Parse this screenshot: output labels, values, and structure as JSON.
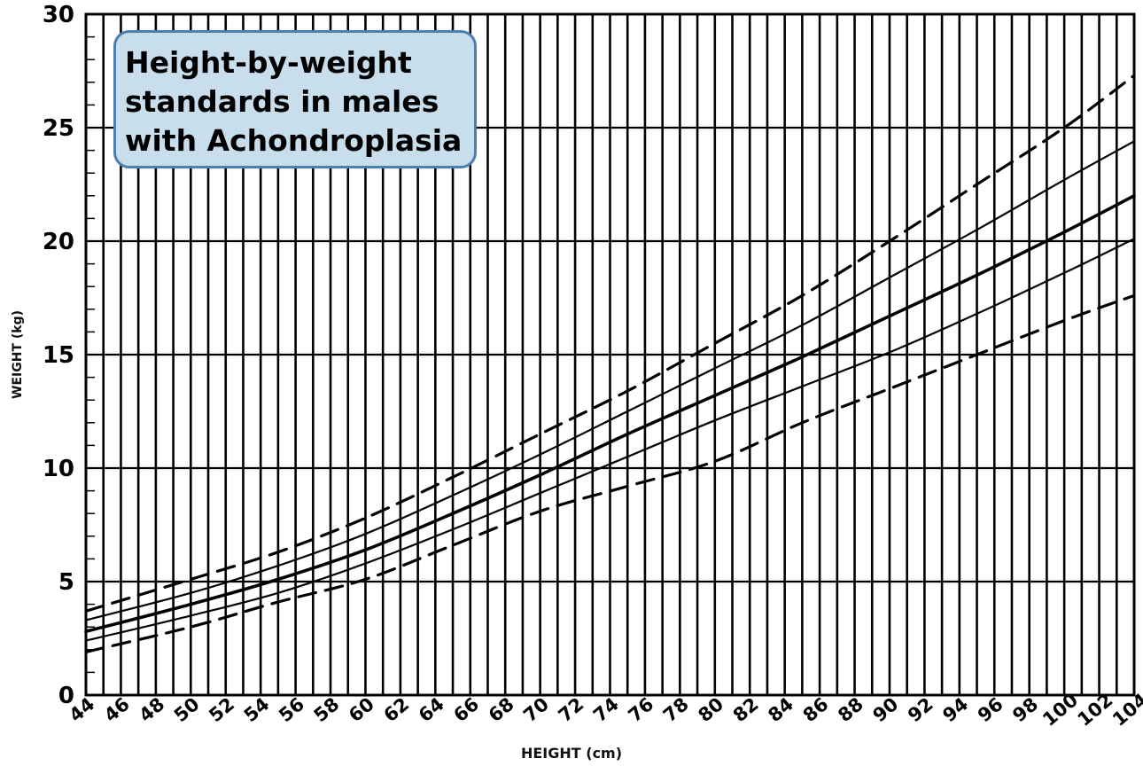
{
  "chart_data": {
    "type": "line",
    "title": "Height-by-weight standards in males with Achondroplasia",
    "xlabel": "HEIGHT (cm)",
    "ylabel": "WEIGHT (kg)",
    "xlim": [
      44,
      104
    ],
    "ylim": [
      0,
      30
    ],
    "x_ticks": [
      44,
      46,
      48,
      50,
      52,
      54,
      56,
      58,
      60,
      62,
      64,
      66,
      68,
      70,
      72,
      74,
      76,
      78,
      80,
      82,
      84,
      86,
      88,
      90,
      92,
      94,
      96,
      98,
      100,
      102,
      104
    ],
    "y_ticks": [
      0,
      5,
      10,
      15,
      20,
      25,
      30
    ],
    "grid": true,
    "legend": "none",
    "series": [
      {
        "style": "dashed",
        "x": [
          44,
          50,
          55,
          60,
          65,
          70,
          75,
          80,
          85,
          90,
          95,
          100,
          104
        ],
        "y": [
          3.7,
          5.1,
          6.3,
          7.8,
          9.6,
          11.5,
          13.4,
          15.5,
          17.6,
          20.0,
          22.5,
          25.0,
          27.3
        ]
      },
      {
        "style": "solid",
        "x": [
          44,
          50,
          55,
          60,
          65,
          70,
          75,
          80,
          85,
          90,
          95,
          100,
          104
        ],
        "y": [
          3.3,
          4.5,
          5.7,
          7.1,
          8.8,
          10.6,
          12.5,
          14.4,
          16.3,
          18.4,
          20.5,
          22.7,
          24.4
        ]
      },
      {
        "style": "solid-bold",
        "x": [
          44,
          50,
          55,
          60,
          65,
          70,
          75,
          80,
          85,
          90,
          95,
          100,
          104
        ],
        "y": [
          2.8,
          4.0,
          5.1,
          6.4,
          8.0,
          9.7,
          11.5,
          13.2,
          14.9,
          16.7,
          18.5,
          20.4,
          22.0
        ]
      },
      {
        "style": "solid",
        "x": [
          44,
          50,
          55,
          60,
          65,
          70,
          75,
          80,
          85,
          90,
          95,
          100,
          104
        ],
        "y": [
          2.4,
          3.5,
          4.5,
          5.8,
          7.3,
          8.9,
          10.5,
          12.1,
          13.6,
          15.1,
          16.8,
          18.6,
          20.1
        ]
      },
      {
        "style": "dashed",
        "x": [
          44,
          50,
          55,
          60,
          65,
          70,
          75,
          80,
          85,
          90,
          95,
          100,
          104
        ],
        "y": [
          1.9,
          3.0,
          4.1,
          5.1,
          6.6,
          8.1,
          9.2,
          10.3,
          12.0,
          13.5,
          15.0,
          16.5,
          17.6
        ]
      }
    ]
  }
}
